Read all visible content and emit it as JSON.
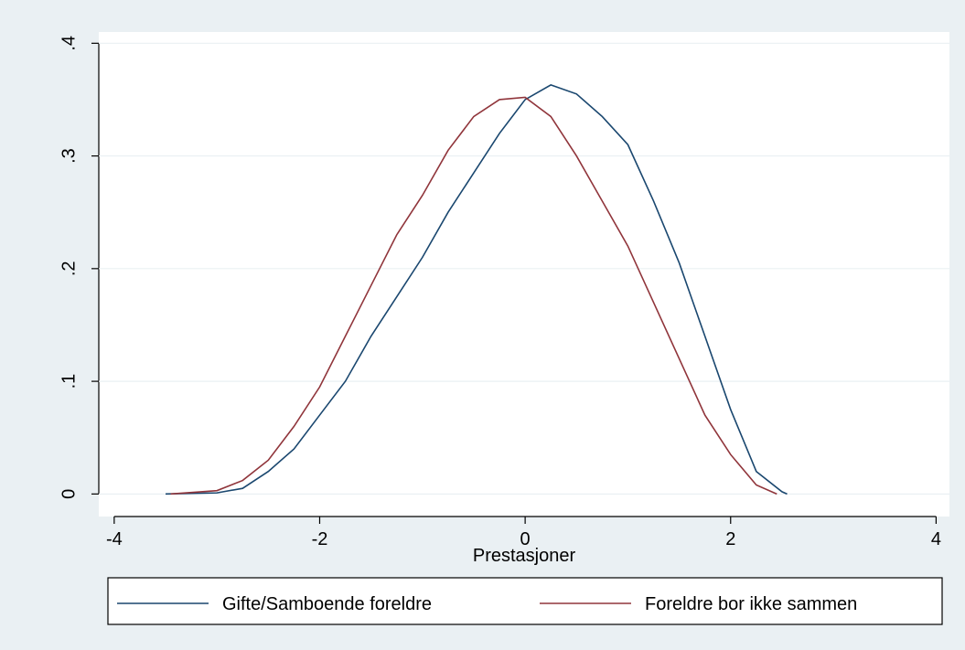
{
  "chart_data": {
    "type": "line",
    "x_label": "Prestasjoner",
    "series": [
      {
        "name": "Gifte/Samboende foreldre",
        "color": "#1a476f",
        "x": [
          -3.5,
          -3,
          -2.75,
          -2.5,
          -2.25,
          -2,
          -1.75,
          -1.5,
          -1.25,
          -1,
          -0.75,
          -0.5,
          -0.25,
          0,
          0.25,
          0.5,
          0.75,
          1,
          1.25,
          1.5,
          1.75,
          2,
          2.25,
          2.5,
          2.55
        ],
        "values": [
          0,
          0.001,
          0.005,
          0.02,
          0.04,
          0.07,
          0.1,
          0.14,
          0.175,
          0.21,
          0.25,
          0.285,
          0.32,
          0.35,
          0.363,
          0.355,
          0.335,
          0.31,
          0.26,
          0.205,
          0.14,
          0.075,
          0.02,
          0.002,
          0
        ]
      },
      {
        "name": "Foreldre bor ikke sammen",
        "color": "#90353b",
        "x": [
          -3.45,
          -3,
          -2.75,
          -2.5,
          -2.25,
          -2,
          -1.75,
          -1.5,
          -1.25,
          -1,
          -0.75,
          -0.5,
          -0.25,
          0,
          0.25,
          0.5,
          0.75,
          1,
          1.25,
          1.5,
          1.75,
          2,
          2.25,
          2.45
        ],
        "values": [
          0,
          0.003,
          0.012,
          0.03,
          0.06,
          0.095,
          0.14,
          0.185,
          0.23,
          0.265,
          0.305,
          0.335,
          0.35,
          0.352,
          0.335,
          0.3,
          0.26,
          0.22,
          0.17,
          0.12,
          0.07,
          0.035,
          0.008,
          0
        ]
      }
    ],
    "xlim": [
      -4.15,
      4.13
    ],
    "xticks": [
      -4,
      -2,
      0,
      2,
      4
    ],
    "ylim": [
      -0.02,
      0.41
    ],
    "yticks": [
      0,
      {
        "value": 0.1,
        "label": ".1"
      },
      {
        "value": 0.2,
        "label": ".2"
      },
      {
        "value": 0.3,
        "label": ".3"
      },
      {
        "value": 0.4,
        "label": ".4"
      }
    ],
    "grid": true,
    "legend": "bottom"
  }
}
